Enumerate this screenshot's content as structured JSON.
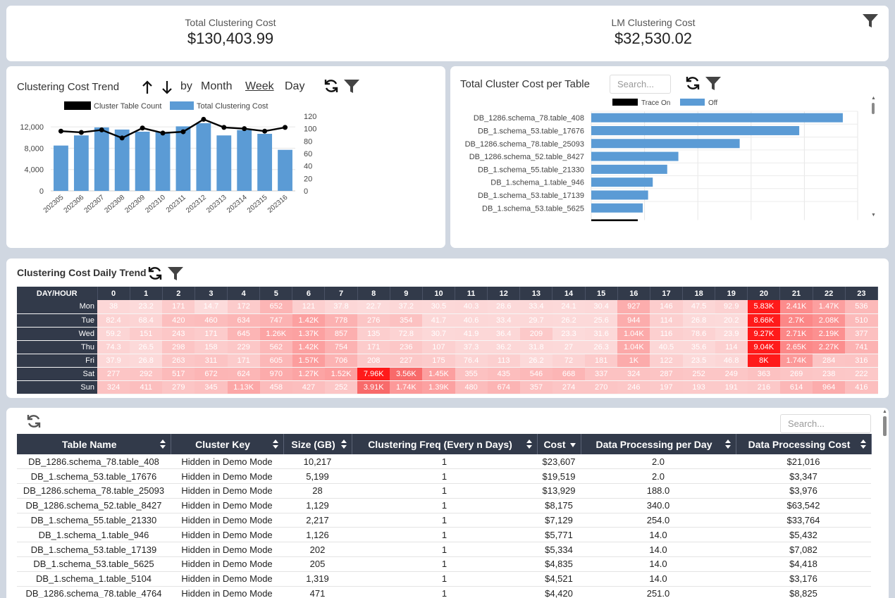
{
  "kpis": [
    {
      "label": "Total Clustering Cost",
      "value": "$130,403.99"
    },
    {
      "label": "LM Clustering Cost",
      "value": "$32,530.02"
    }
  ],
  "trend": {
    "title": "Clustering Cost Trend",
    "by_label": "by",
    "periods": [
      "Month",
      "Week",
      "Day"
    ],
    "selected_period": "Week",
    "search_placeholder": ""
  },
  "per_table": {
    "title": "Total Cluster Cost per Table",
    "search_placeholder": "Search..."
  },
  "daily": {
    "title": "Clustering Cost Daily Trend",
    "corner": "DAY/HOUR",
    "hours": [
      "0",
      "1",
      "2",
      "3",
      "4",
      "5",
      "6",
      "7",
      "8",
      "9",
      "10",
      "11",
      "12",
      "13",
      "14",
      "15",
      "16",
      "17",
      "18",
      "19",
      "20",
      "21",
      "22",
      "23"
    ],
    "rows": [
      {
        "day": "Mon",
        "cells": [
          "38",
          "23.2",
          "171",
          "14.7",
          "172",
          "652",
          "121",
          "37.8",
          "22.7",
          "37.2",
          "30.5",
          "40.3",
          "28.6",
          "33.4",
          "24.1",
          "30.4",
          "927",
          "146",
          "47.5",
          "92.9",
          "5.83K",
          "2.41K",
          "1.47K",
          "536"
        ],
        "vals": [
          38,
          23,
          171,
          15,
          172,
          652,
          121,
          38,
          23,
          37,
          31,
          40,
          29,
          33,
          24,
          30,
          927,
          146,
          48,
          93,
          5830,
          2410,
          1470,
          536
        ]
      },
      {
        "day": "Tue",
        "cells": [
          "82.4",
          "68.4",
          "420",
          "460",
          "634",
          "747",
          "1.42K",
          "778",
          "276",
          "354",
          "41.7",
          "40.6",
          "33.4",
          "29.7",
          "26.2",
          "25.6",
          "944",
          "114",
          "26.8",
          "20.2",
          "8.66K",
          "2.7K",
          "2.08K",
          "510"
        ],
        "vals": [
          82,
          68,
          420,
          460,
          634,
          747,
          1420,
          778,
          276,
          354,
          42,
          41,
          33,
          30,
          26,
          26,
          944,
          114,
          27,
          20,
          8660,
          2700,
          2080,
          510
        ]
      },
      {
        "day": "Wed",
        "cells": [
          "59.2",
          "151",
          "243",
          "171",
          "645",
          "1.26K",
          "1.37K",
          "857",
          "135",
          "72.8",
          "30.7",
          "41.9",
          "36.4",
          "209",
          "23.3",
          "31.6",
          "1.04K",
          "116",
          "78.6",
          "23.9",
          "9.27K",
          "2.71K",
          "2.19K",
          "377"
        ],
        "vals": [
          59,
          151,
          243,
          171,
          645,
          1260,
          1370,
          857,
          135,
          73,
          31,
          42,
          36,
          209,
          23,
          32,
          1040,
          116,
          79,
          24,
          9270,
          2710,
          2190,
          377
        ]
      },
      {
        "day": "Thu",
        "cells": [
          "74.3",
          "26.5",
          "298",
          "158",
          "229",
          "562",
          "1.42K",
          "754",
          "171",
          "236",
          "107",
          "37.3",
          "36.2",
          "31.8",
          "27",
          "26.3",
          "1.04K",
          "40.5",
          "35.6",
          "114",
          "9.04K",
          "2.65K",
          "2.27K",
          "741"
        ],
        "vals": [
          74,
          27,
          298,
          158,
          229,
          562,
          1420,
          754,
          171,
          236,
          107,
          37,
          36,
          32,
          27,
          26,
          1040,
          41,
          36,
          114,
          9040,
          2650,
          2270,
          741
        ]
      },
      {
        "day": "Fri",
        "cells": [
          "37.9",
          "26.8",
          "263",
          "311",
          "171",
          "605",
          "1.57K",
          "706",
          "208",
          "227",
          "175",
          "76.4",
          "113",
          "26.2",
          "72",
          "181",
          "1K",
          "122",
          "23.5",
          "46.8",
          "8K",
          "1.74K",
          "284",
          "316"
        ],
        "vals": [
          38,
          27,
          263,
          311,
          171,
          605,
          1570,
          706,
          208,
          227,
          175,
          76,
          113,
          26,
          72,
          181,
          1000,
          122,
          24,
          47,
          8000,
          1740,
          284,
          316
        ]
      },
      {
        "day": "Sat",
        "cells": [
          "277",
          "292",
          "517",
          "672",
          "624",
          "970",
          "1.27K",
          "1.52K",
          "7.96K",
          "3.56K",
          "1.45K",
          "355",
          "435",
          "546",
          "668",
          "337",
          "324",
          "287",
          "252",
          "249",
          "363",
          "269",
          "238",
          "222"
        ],
        "vals": [
          277,
          292,
          517,
          672,
          624,
          970,
          1270,
          1520,
          7960,
          3560,
          1450,
          355,
          435,
          546,
          668,
          337,
          324,
          287,
          252,
          249,
          363,
          269,
          238,
          222
        ]
      },
      {
        "day": "Sun",
        "cells": [
          "324",
          "411",
          "279",
          "345",
          "1.13K",
          "458",
          "427",
          "252",
          "3.91K",
          "1.74K",
          "1.39K",
          "480",
          "674",
          "357",
          "274",
          "270",
          "246",
          "197",
          "193",
          "191",
          "216",
          "614",
          "964",
          "416"
        ],
        "vals": [
          324,
          411,
          279,
          345,
          1130,
          458,
          427,
          252,
          3910,
          1740,
          1390,
          480,
          674,
          357,
          274,
          270,
          246,
          197,
          193,
          191,
          216,
          614,
          964,
          416
        ]
      }
    ]
  },
  "table": {
    "search_placeholder": "Search...",
    "columns": [
      "Table Name",
      "Cluster Key",
      "Size (GB)",
      "Clustering Freq (Every n Days)",
      "Cost",
      "Data Processing per Day",
      "Data Processing Cost"
    ],
    "rows": [
      [
        "DB_1286.schema_78.table_408",
        "Hidden in Demo Mode",
        "10,217",
        "1",
        "$23,607",
        "2.0",
        "$21,016"
      ],
      [
        "DB_1.schema_53.table_17676",
        "Hidden in Demo Mode",
        "5,199",
        "1",
        "$19,519",
        "2.0",
        "$3,347"
      ],
      [
        "DB_1286.schema_78.table_25093",
        "Hidden in Demo Mode",
        "28",
        "1",
        "$13,929",
        "188.0",
        "$3,976"
      ],
      [
        "DB_1286.schema_52.table_8427",
        "Hidden in Demo Mode",
        "1,129",
        "1",
        "$8,175",
        "340.0",
        "$63,542"
      ],
      [
        "DB_1.schema_55.table_21330",
        "Hidden in Demo Mode",
        "2,217",
        "1",
        "$7,129",
        "254.0",
        "$33,764"
      ],
      [
        "DB_1.schema_1.table_946",
        "Hidden in Demo Mode",
        "1,126",
        "1",
        "$5,771",
        "14.0",
        "$5,432"
      ],
      [
        "DB_1.schema_53.table_17139",
        "Hidden in Demo Mode",
        "202",
        "1",
        "$5,334",
        "14.0",
        "$7,082"
      ],
      [
        "DB_1.schema_53.table_5625",
        "Hidden in Demo Mode",
        "205",
        "1",
        "$4,835",
        "14.0",
        "$4,418"
      ],
      [
        "DB_1.schema_1.table_5104",
        "Hidden in Demo Mode",
        "1,319",
        "1",
        "$4,521",
        "14.0",
        "$3,176"
      ],
      [
        "DB_1286.schema_78.table_4764",
        "Hidden in Demo Mode",
        "471",
        "1",
        "$4,420",
        "251.0",
        "$8,825"
      ]
    ]
  },
  "chart_data": [
    {
      "type": "bar",
      "title": "Clustering Cost Trend",
      "categories": [
        "202305",
        "202306",
        "202307",
        "202308",
        "202309",
        "202310",
        "202311",
        "202312",
        "202313",
        "202314",
        "202315",
        "202316"
      ],
      "series": [
        {
          "name": "Total Clustering Cost",
          "kind": "bar",
          "axis": "left",
          "values": [
            8500,
            10400,
            11900,
            11500,
            11100,
            11000,
            12100,
            12700,
            10400,
            11400,
            10700,
            7700
          ]
        },
        {
          "name": "Cluster Table Count",
          "kind": "line",
          "axis": "right",
          "values": [
            96,
            94,
            98,
            85,
            101,
            93,
            95,
            115,
            102,
            100,
            96,
            102
          ]
        }
      ],
      "left_ticks": [
        "0",
        "4,000",
        "8,000",
        "12,000"
      ],
      "left_range": [
        0,
        14000
      ],
      "right_ticks": [
        "0",
        "20",
        "40",
        "60",
        "80",
        "100",
        "120"
      ],
      "right_range": [
        0,
        120
      ],
      "legend": "top"
    },
    {
      "type": "bar",
      "title": "Total Cluster Cost per Table",
      "orientation": "horizontal",
      "categories": [
        "DB_1286.schema_78.table_408",
        "DB_1.schema_53.table_17676",
        "DB_1286.schema_78.table_25093",
        "DB_1286.schema_52.table_8427",
        "DB_1.schema_55.table_21330",
        "DB_1.schema_1.table_946",
        "DB_1.schema_53.table_17139",
        "DB_1.schema_53.table_5625"
      ],
      "series": [
        {
          "name": "Off",
          "values": [
            23607,
            19519,
            13929,
            8175,
            7129,
            5771,
            5334,
            4835
          ]
        }
      ],
      "legend_entries": [
        "Trace On",
        "Off"
      ],
      "xlim": [
        0,
        25000
      ]
    }
  ],
  "colors": {
    "bar": "#5b9bd5",
    "line": "#000000",
    "header": "#323a4a",
    "heat_max": "#ff0000"
  }
}
